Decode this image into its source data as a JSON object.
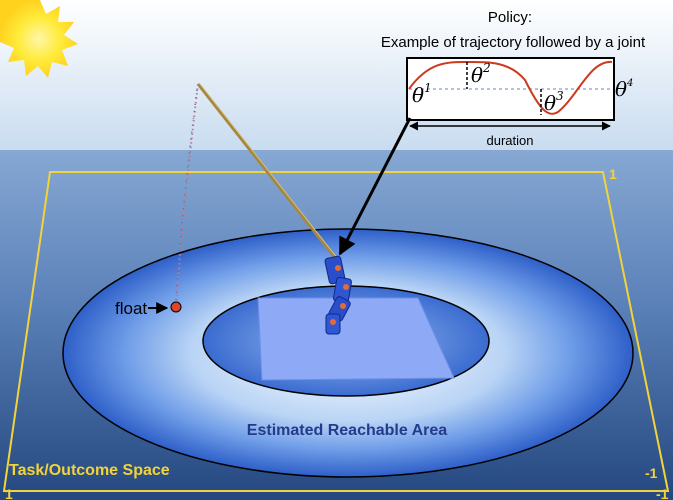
{
  "policy": {
    "title": "Policy:",
    "subtitle": "Example of trajectory followed by a joint",
    "theta_symbol": "θ",
    "exponents": [
      "1",
      "2",
      "3",
      "4"
    ],
    "duration_label": "duration"
  },
  "float_label": "float",
  "reachable_label": "Estimated Reachable Area",
  "task_space_label": "Task/Outcome Space",
  "corners": {
    "top_right": "1",
    "bottom_right": "-1",
    "bottom_left": "1",
    "bottom_right_edge": "-1"
  },
  "colors": {
    "sky_top": "#ffffff",
    "sky_bottom": "#c9dcf0",
    "water_top": "#7ea2cf",
    "water_bottom": "#2b4f87",
    "outcome_border": "#f2d33a",
    "policy_curve": "#cc3a1f",
    "robot": "#2a4ec9",
    "float_dot": "#e0452a",
    "text_yellow": "#f2d33a",
    "text_blue": "#243b8c"
  }
}
